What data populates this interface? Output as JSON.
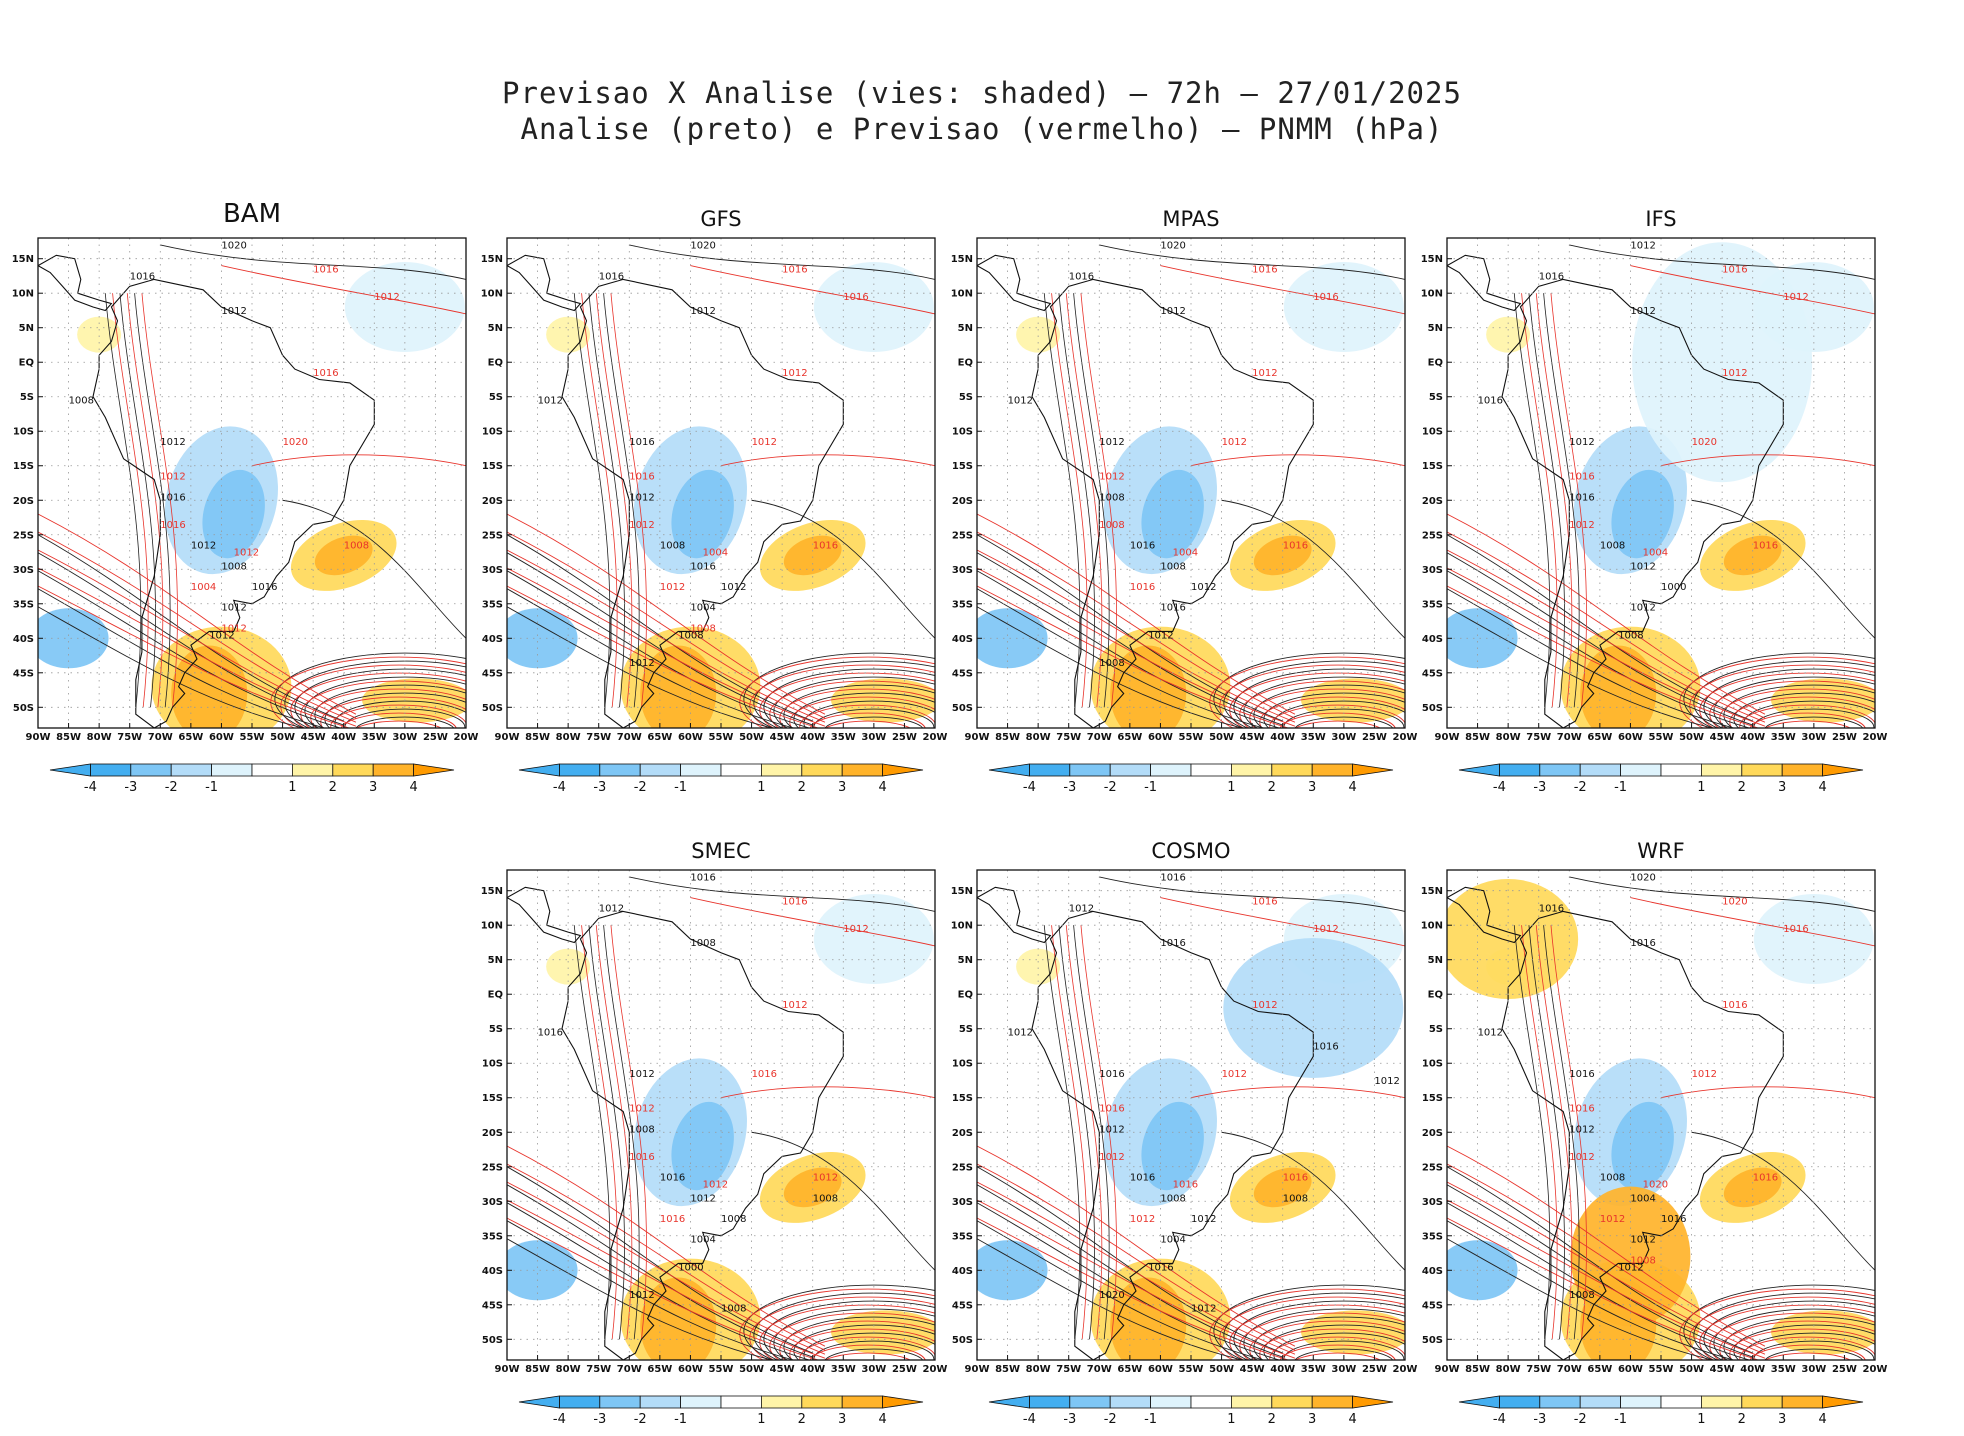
{
  "title": {
    "line1": "Previsao X Analise (vies: shaded) – 72h – 27/01/2025",
    "line2": "Analise (preto) e Previsao (vermelho) – PNMM (hPa)"
  },
  "colors": {
    "bias_scale": [
      "#43aef0",
      "#7ec6f5",
      "#b3dcf8",
      "#def3fc",
      "#ffffff",
      "#fff4a8",
      "#ffd95a",
      "#ffb32a",
      "#ff9a00"
    ],
    "analysis_contour": "#222222",
    "forecast_contour": "#e8342c",
    "coast": "#111111"
  },
  "chart_data": [
    {
      "type": "map_contour_bias",
      "model": "BAM",
      "x_ticks": [
        "90W",
        "85W",
        "80W",
        "75W",
        "70W",
        "65W",
        "60W",
        "55W",
        "50W",
        "45W",
        "40W",
        "35W",
        "30W",
        "25W",
        "20W"
      ],
      "y_ticks": [
        "15N",
        "10N",
        "5N",
        "EQ",
        "5S",
        "10S",
        "15S",
        "20S",
        "25S",
        "30S",
        "35S",
        "40S",
        "45S",
        "50S"
      ],
      "colorbar_labels": [
        "-4",
        "-3",
        "-2",
        "-1",
        "1",
        "2",
        "3",
        "4"
      ],
      "analysis_labels": [
        "1020",
        "1016",
        "1012",
        "1008",
        "1012",
        "1016",
        "1012",
        "1008",
        "1016",
        "1012",
        "1012"
      ],
      "forecast_labels": [
        "1016",
        "1012",
        "1016",
        "1020",
        "1012",
        "1016",
        "1012",
        "1008",
        "1004",
        "1012"
      ]
    },
    {
      "type": "map_contour_bias",
      "model": "GFS",
      "x_ticks": [
        "90W",
        "85W",
        "80W",
        "75W",
        "70W",
        "65W",
        "60W",
        "55W",
        "50W",
        "45W",
        "40W",
        "35W",
        "30W",
        "25W",
        "20W"
      ],
      "y_ticks": [
        "15N",
        "10N",
        "5N",
        "EQ",
        "5S",
        "10S",
        "15S",
        "20S",
        "25S",
        "30S",
        "35S",
        "40S",
        "45S",
        "50S"
      ],
      "colorbar_labels": [
        "-4",
        "-3",
        "-2",
        "-1",
        "1",
        "2",
        "3",
        "4"
      ],
      "analysis_labels": [
        "1020",
        "1016",
        "1012",
        "1012",
        "1016",
        "1012",
        "1008",
        "1016",
        "1012",
        "1004",
        "1008",
        "1012"
      ],
      "forecast_labels": [
        "1016",
        "1016",
        "1012",
        "1012",
        "1016",
        "1012",
        "1004",
        "1016",
        "1012",
        "1008"
      ]
    },
    {
      "type": "map_contour_bias",
      "model": "MPAS",
      "x_ticks": [
        "90W",
        "85W",
        "80W",
        "75W",
        "70W",
        "65W",
        "60W",
        "55W",
        "50W",
        "45W",
        "40W",
        "35W",
        "30W",
        "25W",
        "20W"
      ],
      "y_ticks": [
        "15N",
        "10N",
        "5N",
        "EQ",
        "5S",
        "10S",
        "15S",
        "20S",
        "25S",
        "30S",
        "35S",
        "40S",
        "45S",
        "50S"
      ],
      "colorbar_labels": [
        "-4",
        "-3",
        "-2",
        "-1",
        "1",
        "2",
        "3",
        "4"
      ],
      "analysis_labels": [
        "1020",
        "1016",
        "1012",
        "1012",
        "1012",
        "1008",
        "1016",
        "1008",
        "1012",
        "1016",
        "1012",
        "1008"
      ],
      "forecast_labels": [
        "1016",
        "1016",
        "1012",
        "1012",
        "1012",
        "1008",
        "1004",
        "1016",
        "1016"
      ]
    },
    {
      "type": "map_contour_bias",
      "model": "IFS",
      "x_ticks": [
        "90W",
        "85W",
        "80W",
        "75W",
        "70W",
        "65W",
        "60W",
        "55W",
        "50W",
        "45W",
        "40W",
        "35W",
        "30W",
        "25W",
        "20W"
      ],
      "y_ticks": [
        "15N",
        "10N",
        "5N",
        "EQ",
        "5S",
        "10S",
        "15S",
        "20S",
        "25S",
        "30S",
        "35S",
        "40S",
        "45S",
        "50S"
      ],
      "colorbar_labels": [
        "-4",
        "-3",
        "-2",
        "-1",
        "1",
        "2",
        "3",
        "4"
      ],
      "analysis_labels": [
        "1012",
        "1016",
        "1012",
        "1016",
        "1012",
        "1016",
        "1008",
        "1012",
        "1000",
        "1012",
        "1008"
      ],
      "forecast_labels": [
        "1016",
        "1012",
        "1012",
        "1020",
        "1016",
        "1012",
        "1004",
        "1016"
      ]
    },
    {
      "type": "map_contour_bias",
      "model": "SMEC",
      "x_ticks": [
        "90W",
        "85W",
        "80W",
        "75W",
        "70W",
        "65W",
        "60W",
        "55W",
        "50W",
        "45W",
        "40W",
        "35W",
        "30W",
        "25W",
        "20W"
      ],
      "y_ticks": [
        "15N",
        "10N",
        "5N",
        "EQ",
        "5S",
        "10S",
        "15S",
        "20S",
        "25S",
        "30S",
        "35S",
        "40S",
        "45S",
        "50S"
      ],
      "colorbar_labels": [
        "-4",
        "-3",
        "-2",
        "-1",
        "1",
        "2",
        "3",
        "4"
      ],
      "analysis_labels": [
        "1016",
        "1012",
        "1008",
        "1016",
        "1012",
        "1008",
        "1016",
        "1012",
        "1008",
        "1004",
        "1000",
        "1012",
        "1008",
        "1008"
      ],
      "forecast_labels": [
        "1016",
        "1012",
        "1012",
        "1016",
        "1012",
        "1016",
        "1012",
        "1012",
        "1016"
      ]
    },
    {
      "type": "map_contour_bias",
      "model": "COSMO",
      "x_ticks": [
        "90W",
        "85W",
        "80W",
        "75W",
        "70W",
        "65W",
        "60W",
        "55W",
        "50W",
        "45W",
        "40W",
        "35W",
        "30W",
        "25W",
        "20W"
      ],
      "y_ticks": [
        "15N",
        "10N",
        "5N",
        "EQ",
        "5S",
        "10S",
        "15S",
        "20S",
        "25S",
        "30S",
        "35S",
        "40S",
        "45S",
        "50S"
      ],
      "colorbar_labels": [
        "-4",
        "-3",
        "-2",
        "-1",
        "1",
        "2",
        "3",
        "4"
      ],
      "analysis_labels": [
        "1016",
        "1012",
        "1016",
        "1012",
        "1016",
        "1012",
        "1016",
        "1008",
        "1012",
        "1004",
        "1016",
        "1020",
        "1012",
        "1008",
        "1012",
        "1016"
      ],
      "forecast_labels": [
        "1016",
        "1012",
        "1012",
        "1012",
        "1016",
        "1012",
        "1016",
        "1016",
        "1012"
      ]
    },
    {
      "type": "map_contour_bias",
      "model": "WRF",
      "x_ticks": [
        "90W",
        "85W",
        "80W",
        "75W",
        "70W",
        "65W",
        "60W",
        "55W",
        "50W",
        "45W",
        "40W",
        "35W",
        "30W",
        "25W",
        "20W"
      ],
      "y_ticks": [
        "15N",
        "10N",
        "5N",
        "EQ",
        "5S",
        "10S",
        "15S",
        "20S",
        "25S",
        "30S",
        "35S",
        "40S",
        "45S",
        "50S"
      ],
      "colorbar_labels": [
        "-4",
        "-3",
        "-2",
        "-1",
        "1",
        "2",
        "3",
        "4"
      ],
      "analysis_labels": [
        "1020",
        "1016",
        "1016",
        "1012",
        "1016",
        "1012",
        "1008",
        "1004",
        "1016",
        "1012",
        "1012",
        "1008"
      ],
      "forecast_labels": [
        "1020",
        "1016",
        "1016",
        "1012",
        "1016",
        "1012",
        "1020",
        "1016",
        "1012",
        "1008"
      ]
    }
  ]
}
